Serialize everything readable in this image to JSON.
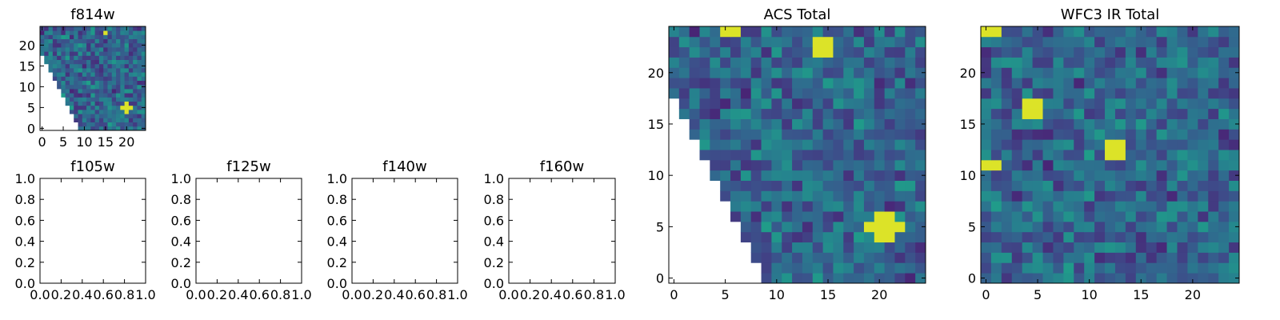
{
  "chart_data": [
    {
      "type": "heatmap",
      "title": "f814w",
      "xlim": [
        -0.5,
        24.5
      ],
      "ylim": [
        -0.5,
        24.5
      ],
      "xticks": [
        0,
        5,
        10,
        15,
        20
      ],
      "yticks": [
        0,
        5,
        10,
        15,
        20
      ],
      "colormap": "viridis",
      "masked_region": "lower-left triangle (no data)",
      "bright_pixels": [
        {
          "x": 15,
          "y": 23
        },
        {
          "x": 20,
          "y": 5
        },
        {
          "x": 21,
          "y": 5
        },
        {
          "x": 20,
          "y": 4
        },
        {
          "x": 20,
          "y": 6
        },
        {
          "x": 19,
          "y": 5
        }
      ]
    },
    {
      "type": "heatmap",
      "title": "ACS Total",
      "xlim": [
        -0.5,
        24.5
      ],
      "ylim": [
        -0.5,
        24.5
      ],
      "xticks": [
        0,
        5,
        10,
        15,
        20
      ],
      "yticks": [
        0,
        5,
        10,
        15,
        20
      ],
      "colormap": "viridis",
      "masked_region": "lower-left triangle (no data)",
      "bright_pixels": [
        {
          "x": 5,
          "y": 24
        },
        {
          "x": 6,
          "y": 24
        },
        {
          "x": 14,
          "y": 22
        },
        {
          "x": 15,
          "y": 22
        },
        {
          "x": 14,
          "y": 23
        },
        {
          "x": 15,
          "y": 23
        },
        {
          "x": 20,
          "y": 5
        },
        {
          "x": 21,
          "y": 5
        },
        {
          "x": 22,
          "y": 5
        },
        {
          "x": 19,
          "y": 5
        },
        {
          "x": 21,
          "y": 4
        },
        {
          "x": 20,
          "y": 4
        },
        {
          "x": 21,
          "y": 6
        },
        {
          "x": 20,
          "y": 6
        }
      ]
    },
    {
      "type": "heatmap",
      "title": "WFC3 IR Total",
      "xlim": [
        -0.5,
        24.5
      ],
      "ylim": [
        -0.5,
        24.5
      ],
      "xticks": [
        0,
        5,
        10,
        15,
        20
      ],
      "yticks": [
        0,
        5,
        10,
        15,
        20
      ],
      "colormap": "viridis",
      "bright_pixels": [
        {
          "x": 0,
          "y": 24
        },
        {
          "x": 1,
          "y": 24
        },
        {
          "x": 4,
          "y": 16
        },
        {
          "x": 5,
          "y": 16
        },
        {
          "x": 4,
          "y": 17
        },
        {
          "x": 5,
          "y": 17
        },
        {
          "x": 12,
          "y": 12
        },
        {
          "x": 13,
          "y": 12
        },
        {
          "x": 12,
          "y": 13
        },
        {
          "x": 13,
          "y": 13
        },
        {
          "x": 0,
          "y": 11
        },
        {
          "x": 1,
          "y": 11
        }
      ]
    },
    {
      "type": "heatmap",
      "title": "f105w",
      "xlim": [
        0.0,
        1.0
      ],
      "ylim": [
        0.0,
        1.0
      ],
      "xticks": [
        "0.0",
        "0.2",
        "0.4",
        "0.6",
        "0.8",
        "1.0"
      ],
      "yticks": [
        "0.0",
        "0.2",
        "0.4",
        "0.6",
        "0.8",
        "1.0"
      ],
      "empty": true
    },
    {
      "type": "heatmap",
      "title": "f125w",
      "xlim": [
        0.0,
        1.0
      ],
      "ylim": [
        0.0,
        1.0
      ],
      "xticks": [
        "0.0",
        "0.2",
        "0.4",
        "0.6",
        "0.8",
        "1.0"
      ],
      "yticks": [
        "0.0",
        "0.2",
        "0.4",
        "0.6",
        "0.8",
        "1.0"
      ],
      "empty": true
    },
    {
      "type": "heatmap",
      "title": "f140w",
      "xlim": [
        0.0,
        1.0
      ],
      "ylim": [
        0.0,
        1.0
      ],
      "xticks": [
        "0.0",
        "0.2",
        "0.4",
        "0.6",
        "0.8",
        "1.0"
      ],
      "yticks": [
        "0.0",
        "0.2",
        "0.4",
        "0.6",
        "0.8",
        "1.0"
      ],
      "empty": true
    },
    {
      "type": "heatmap",
      "title": "f160w",
      "xlim": [
        0.0,
        1.0
      ],
      "ylim": [
        0.0,
        1.0
      ],
      "xticks": [
        "0.0",
        "0.2",
        "0.4",
        "0.6",
        "0.8",
        "1.0"
      ],
      "yticks": [
        "0.0",
        "0.2",
        "0.4",
        "0.6",
        "0.8",
        "1.0"
      ],
      "empty": true
    }
  ]
}
